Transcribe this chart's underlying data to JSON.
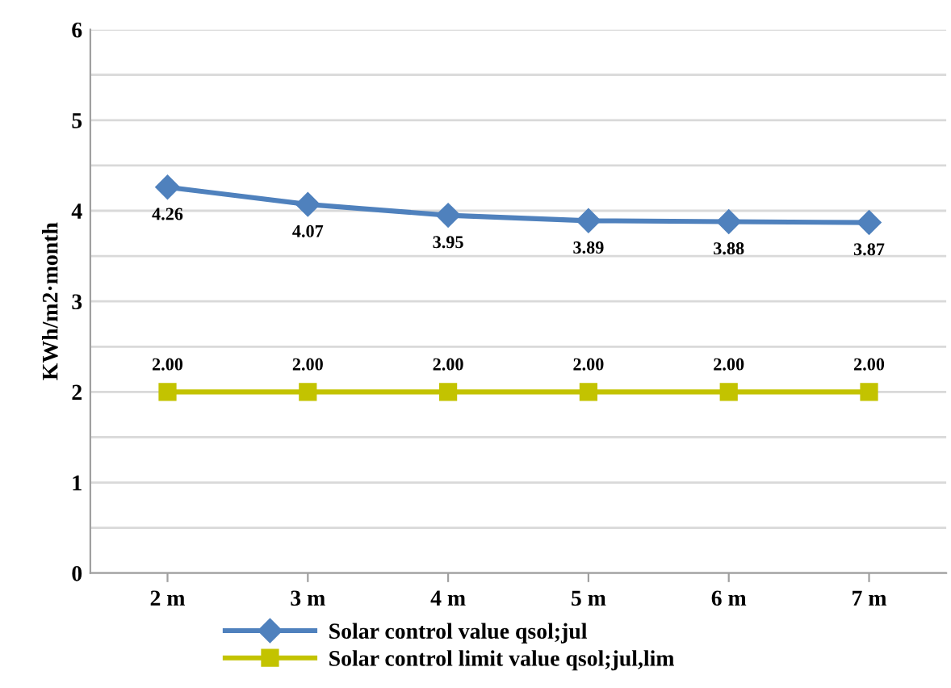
{
  "chart_data": {
    "type": "line",
    "ylabel": "KWh/m2·month",
    "categories": [
      "2 m",
      "3 m",
      "4 m",
      "5 m",
      "6 m",
      "7 m"
    ],
    "series": [
      {
        "name": "Solar control value qsol;jul",
        "color": "#4f81bd",
        "marker": "diamond",
        "values": [
          4.26,
          4.07,
          3.95,
          3.89,
          3.88,
          3.87
        ],
        "value_labels": [
          "4.26",
          "4.07",
          "3.95",
          "3.89",
          "3.88",
          "3.87"
        ]
      },
      {
        "name": "Solar control limit value qsol;jul,lim",
        "color": "#c3c300",
        "marker": "square",
        "values": [
          2.0,
          2.0,
          2.0,
          2.0,
          2.0,
          2.0
        ],
        "value_labels": [
          "2.00",
          "2.00",
          "2.00",
          "2.00",
          "2.00",
          "2.00"
        ]
      }
    ],
    "ylim": [
      0,
      6
    ],
    "yticks": [
      0,
      {
        "value": 0.5,
        "label": null
      },
      1,
      {
        "value": 1.5,
        "label": null
      },
      2,
      {
        "value": 2.5,
        "label": null
      },
      3,
      {
        "value": 3.5,
        "label": null
      },
      4,
      {
        "value": 4.5,
        "label": null
      },
      5,
      {
        "value": 5.5,
        "label": null
      },
      6
    ],
    "grid": "y",
    "legend": "bottom",
    "line_style": "solid"
  }
}
